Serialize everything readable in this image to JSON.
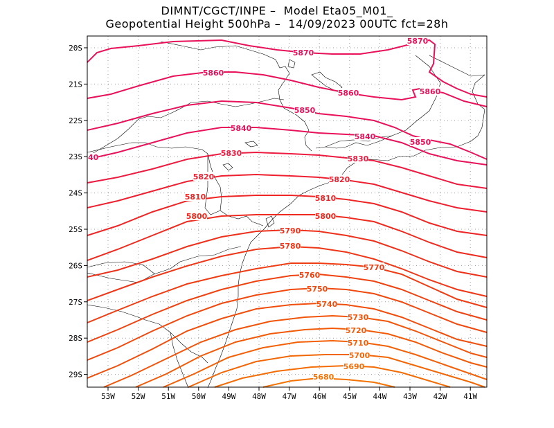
{
  "title": {
    "line1": "DIMNT/CGCT/INPE –  Model Eta05_M01_",
    "line2": "Geopotential Height 500hPa –  14/09/2023 00UTC fct=28h"
  },
  "axes": {
    "lon_labels": [
      "53W",
      "52W",
      "51W",
      "50W",
      "49W",
      "48W",
      "47W",
      "46W",
      "45W",
      "44W",
      "43W",
      "42W",
      "41W"
    ],
    "lat_labels": [
      "20S",
      "21S",
      "22S",
      "23S",
      "24S",
      "25S",
      "26S",
      "27S",
      "28S",
      "29S"
    ]
  },
  "chart_data": {
    "type": "contour",
    "variable": "Geopotential Height 500hPa",
    "contour_interval": 10,
    "contours": [
      {
        "value": 5870,
        "label": "5870"
      },
      {
        "value": 5860,
        "label": "5860"
      },
      {
        "value": 5850,
        "label": "5850"
      },
      {
        "value": 5840,
        "label": "5840"
      },
      {
        "value": 5830,
        "label": "5830"
      },
      {
        "value": 5820,
        "label": "5820"
      },
      {
        "value": 5810,
        "label": "5810"
      },
      {
        "value": 5800,
        "label": "5800"
      },
      {
        "value": 5790,
        "label": "5790"
      },
      {
        "value": 5780,
        "label": "5780"
      },
      {
        "value": 5770,
        "label": "5770"
      },
      {
        "value": 5760,
        "label": "5760"
      },
      {
        "value": 5750,
        "label": "5750"
      },
      {
        "value": 5740,
        "label": "5740"
      },
      {
        "value": 5730,
        "label": "5730"
      },
      {
        "value": 5720,
        "label": "5720"
      },
      {
        "value": 5710,
        "label": "5710"
      },
      {
        "value": 5700,
        "label": "5700"
      },
      {
        "value": 5690,
        "label": "5690"
      },
      {
        "value": 5680,
        "label": "5680"
      }
    ],
    "edge_label": "40"
  }
}
